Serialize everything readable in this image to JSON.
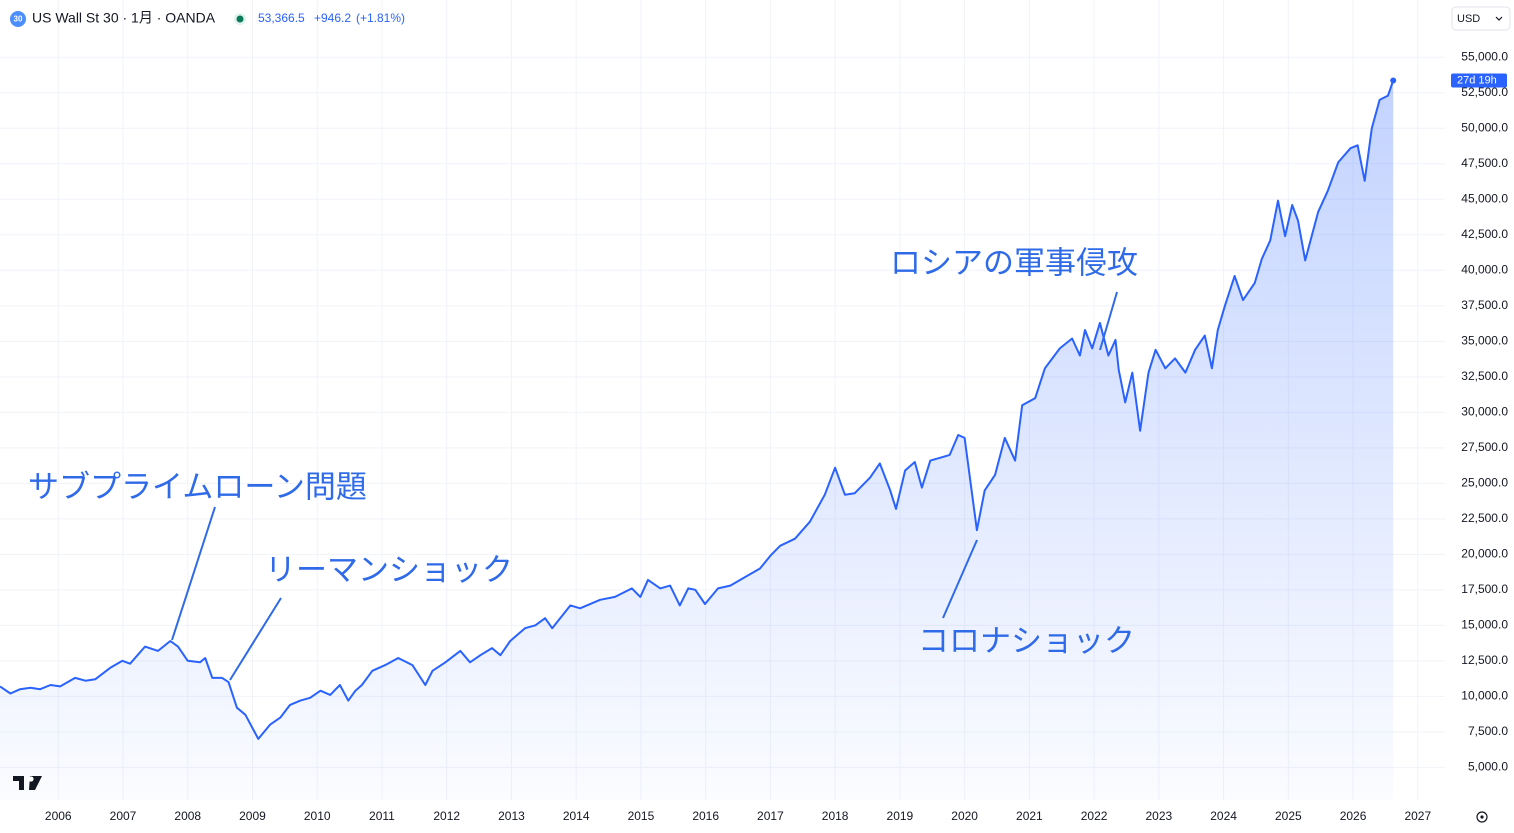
{
  "chart_data": {
    "type": "area",
    "symbol_badge": "30",
    "title": "US Wall St 30 · 1月 · OANDA",
    "last": "53,366.5",
    "change": "+946.2",
    "change_pct": "(+1.81%)",
    "currency": "USD",
    "countdown": "27d 19h",
    "color": "#2962ff",
    "grid": true,
    "annotations": [
      {
        "text": "サブプライムローン問題"
      },
      {
        "text": "リーマンショック"
      },
      {
        "text": "ロシアの軍事侵攻"
      },
      {
        "text": "コロナショック"
      }
    ],
    "x": [
      2005.1,
      2005.26,
      2005.41,
      2005.57,
      2005.72,
      2005.88,
      2006.03,
      2006.26,
      2006.42,
      2006.57,
      2006.8,
      2006.99,
      2007.11,
      2007.34,
      2007.54,
      2007.73,
      2007.85,
      2008.0,
      2008.19,
      2008.27,
      2008.38,
      2008.53,
      2008.63,
      2008.76,
      2008.89,
      2009.09,
      2009.27,
      2009.43,
      2009.58,
      2009.74,
      2009.89,
      2010.05,
      2010.2,
      2010.35,
      2010.48,
      2010.59,
      2010.69,
      2010.85,
      2011.05,
      2011.25,
      2011.47,
      2011.67,
      2011.78,
      2011.98,
      2012.21,
      2012.36,
      2012.52,
      2012.7,
      2012.83,
      2012.98,
      2013.21,
      2013.37,
      2013.52,
      2013.63,
      2013.91,
      2014.06,
      2014.37,
      2014.6,
      2014.86,
      2014.99,
      2015.11,
      2015.3,
      2015.45,
      2015.6,
      2015.73,
      2015.84,
      2015.99,
      2016.19,
      2016.38,
      2016.61,
      2016.84,
      2017.0,
      2017.15,
      2017.38,
      2017.61,
      2017.84,
      2018.0,
      2018.15,
      2018.3,
      2018.54,
      2018.69,
      2018.85,
      2018.94,
      2019.08,
      2019.23,
      2019.34,
      2019.47,
      2019.62,
      2019.77,
      2019.9,
      2020.0,
      2020.19,
      2020.31,
      2020.47,
      2020.62,
      2020.78,
      2020.89,
      2021.09,
      2021.24,
      2021.47,
      2021.66,
      2021.78,
      2021.86,
      2021.97,
      2022.09,
      2022.22,
      2022.33,
      2022.38,
      2022.48,
      2022.59,
      2022.71,
      2022.84,
      2022.95,
      2023.1,
      2023.25,
      2023.41,
      2023.56,
      2023.71,
      2023.82,
      2023.91,
      2024.02,
      2024.17,
      2024.3,
      2024.48,
      2024.59,
      2024.72,
      2024.84,
      2024.95,
      2025.06,
      2025.15,
      2025.26,
      2025.46,
      2025.61,
      2025.77,
      2025.96,
      2026.07,
      2026.18,
      2026.29,
      2026.41,
      2026.54,
      2026.62
    ],
    "values": [
      10700,
      10200,
      10500,
      10600,
      10500,
      10800,
      10700,
      11300,
      11100,
      11200,
      12000,
      12500,
      12300,
      13500,
      13200,
      13900,
      13500,
      12500,
      12400,
      12700,
      11300,
      11300,
      11000,
      9200,
      8700,
      7000,
      8000,
      8500,
      9400,
      9700,
      9900,
      10400,
      10100,
      10800,
      9700,
      10400,
      10800,
      11800,
      12200,
      12700,
      12200,
      10800,
      11800,
      12400,
      13200,
      12400,
      12900,
      13400,
      12900,
      13900,
      14800,
      15000,
      15500,
      14800,
      16400,
      16200,
      16800,
      17000,
      17600,
      17000,
      18200,
      17600,
      17800,
      16400,
      17600,
      17500,
      16500,
      17600,
      17800,
      18400,
      19000,
      19900,
      20600,
      21100,
      22300,
      24200,
      26100,
      24200,
      24300,
      25400,
      26400,
      24500,
      23200,
      25900,
      26500,
      24700,
      26600,
      26800,
      27000,
      28400,
      28200,
      21700,
      24500,
      25600,
      28200,
      26600,
      30500,
      31000,
      33100,
      34500,
      35200,
      34000,
      35800,
      34500,
      36300,
      34000,
      35100,
      33000,
      30700,
      32800,
      28700,
      32800,
      34400,
      33100,
      33800,
      32800,
      34400,
      35400,
      33100,
      35800,
      37500,
      39600,
      37900,
      39100,
      40800,
      42100,
      44900,
      42400,
      44600,
      43500,
      40700,
      44100,
      45600,
      47600,
      48600,
      48800,
      46300,
      50000,
      52000,
      52300,
      53366.5
    ],
    "xlim": [
      2005.1,
      2027.42
    ],
    "xticks": [
      2006,
      2007,
      2008,
      2009,
      2010,
      2011,
      2012,
      2013,
      2014,
      2015,
      2016,
      2017,
      2018,
      2019,
      2020,
      2021,
      2022,
      2023,
      2024,
      2025,
      2026,
      2027
    ],
    "ylim": [
      2700,
      56500
    ],
    "yticks": [
      {
        "value": 5000,
        "label": "5,000.0"
      },
      {
        "value": 7500,
        "label": "7,500.0"
      },
      {
        "value": 10000,
        "label": "10,000.0"
      },
      {
        "value": 12500,
        "label": "12,500.0"
      },
      {
        "value": 15000,
        "label": "15,000.0"
      },
      {
        "value": 17500,
        "label": "17,500.0"
      },
      {
        "value": 20000,
        "label": "20,000.0"
      },
      {
        "value": 22500,
        "label": "22,500.0"
      },
      {
        "value": 25000,
        "label": "25,000.0"
      },
      {
        "value": 27500,
        "label": "27,500.0"
      },
      {
        "value": 30000,
        "label": "30,000.0"
      },
      {
        "value": 32500,
        "label": "32,500.0"
      },
      {
        "value": 35000,
        "label": "35,000.0"
      },
      {
        "value": 37500,
        "label": "37,500.0"
      },
      {
        "value": 40000,
        "label": "40,000.0"
      },
      {
        "value": 42500,
        "label": "42,500.0"
      },
      {
        "value": 45000,
        "label": "45,000.0"
      },
      {
        "value": 47500,
        "label": "47,500.0"
      },
      {
        "value": 50000,
        "label": "50,000.0"
      },
      {
        "value": 52500,
        "label": "52,500.0"
      },
      {
        "value": 55000,
        "label": "55,000.0"
      }
    ]
  }
}
